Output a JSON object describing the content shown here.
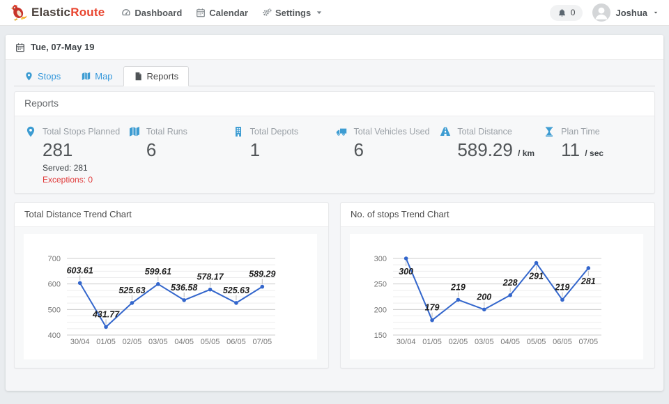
{
  "navbar": {
    "brand": {
      "logo_icon": "rooster-logo-icon",
      "name_primary": "Elastic",
      "name_secondary": "Route"
    },
    "items": [
      {
        "label": "Dashboard",
        "icon": "dashboard-icon"
      },
      {
        "label": "Calendar",
        "icon": "calendar-icon"
      },
      {
        "label": "Settings",
        "icon": "gears-icon",
        "has_caret": true
      }
    ],
    "notifications": {
      "icon": "bell-icon",
      "count": "0"
    },
    "user": {
      "name": "Joshua",
      "icon": "person-icon",
      "has_caret": true
    }
  },
  "date_header": {
    "icon": "calendar-icon",
    "label": "Tue, 07-May 19"
  },
  "tabs": [
    {
      "label": "Stops",
      "icon": "map-marker-icon",
      "active": false
    },
    {
      "label": "Map",
      "icon": "map-icon",
      "active": false
    },
    {
      "label": "Reports",
      "icon": "file-icon",
      "active": true
    }
  ],
  "reports_panel": {
    "title": "Reports",
    "stats": [
      {
        "icon": "map-marker-icon",
        "label": "Total Stops Planned",
        "value": "281",
        "sub": [
          {
            "text": "Served: 281",
            "alert": false
          },
          {
            "text": "Exceptions: 0",
            "alert": true
          }
        ]
      },
      {
        "icon": "map-icon",
        "label": "Total Runs",
        "value": "6"
      },
      {
        "icon": "building-icon",
        "label": "Total Depots",
        "value": "1"
      },
      {
        "icon": "truck-icon",
        "label": "Total Vehicles Used",
        "value": "6"
      },
      {
        "icon": "road-icon",
        "label": "Total Distance",
        "value": "589.29",
        "unit": "/ km"
      },
      {
        "icon": "hourglass-icon",
        "label": "Plan Time",
        "value": "11",
        "unit": "/ sec"
      }
    ]
  },
  "chart_data": [
    {
      "type": "line",
      "title": "Total Distance Trend Chart",
      "categories": [
        "30/04",
        "01/05",
        "02/05",
        "03/05",
        "04/05",
        "05/05",
        "06/05",
        "07/05"
      ],
      "values": [
        603.61,
        431.77,
        525.63,
        599.61,
        536.58,
        578.17,
        525.63,
        589.29
      ],
      "xlabel": "",
      "ylabel": "",
      "ylim": [
        400,
        700
      ],
      "yticks": [
        400,
        500,
        600,
        700
      ],
      "line_color": "#3366cc",
      "grid": true,
      "legend": "none",
      "annotations": "point values, bold italic"
    },
    {
      "type": "line",
      "title": "No. of stops Trend Chart",
      "categories": [
        "30/04",
        "01/05",
        "02/05",
        "03/05",
        "04/05",
        "05/05",
        "06/05",
        "07/05"
      ],
      "values": [
        300,
        179,
        219,
        200,
        228,
        291,
        219,
        281
      ],
      "xlabel": "",
      "ylabel": "",
      "ylim": [
        150,
        300
      ],
      "yticks": [
        150,
        200,
        250,
        300
      ],
      "line_color": "#3366cc",
      "grid": true,
      "legend": "none",
      "annotations": "point values, bold italic"
    }
  ],
  "colors": {
    "accent_blue": "#3d9cd2",
    "link_blue": "#3598db",
    "brand_red": "#e8432d",
    "alert_red": "#e03a3a",
    "chart_line": "#3366cc"
  }
}
